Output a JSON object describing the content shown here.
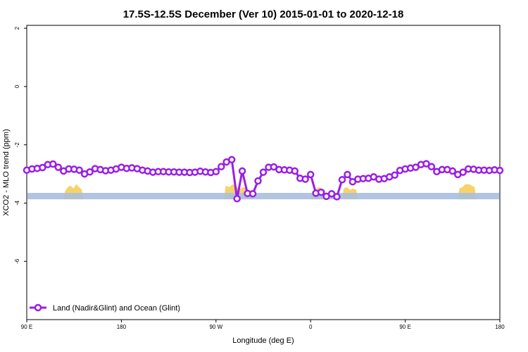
{
  "chart_data": {
    "type": "line",
    "title": "17.5S-12.5S December (Ver 10)   2015-01-01 to 2020-12-18",
    "xlabel": "Longitude (deg E)",
    "ylabel": "XCO2 - MLO trend (ppm)",
    "xlim": [
      90,
      450
    ],
    "ylim": [
      -8.0,
      2.1
    ],
    "x_ticks": [
      {
        "value": 90,
        "label": "90 E"
      },
      {
        "value": 162,
        "label": "180"
      },
      {
        "value": 234,
        "label": "90 W"
      },
      {
        "value": 306,
        "label": "0"
      },
      {
        "value": 378,
        "label": "90 E"
      },
      {
        "value": 450,
        "label": "180"
      }
    ],
    "y_ticks": [
      {
        "value": 2,
        "label": "2"
      },
      {
        "value": 0,
        "label": "0"
      },
      {
        "value": -2,
        "label": "-2"
      },
      {
        "value": -4,
        "label": "-4"
      },
      {
        "value": -6,
        "label": "-6"
      }
    ],
    "grid": false,
    "legend_position": "bottom-left",
    "series": [
      {
        "name": "Land (Nadir&Glint) and Ocean (Glint)",
        "color": "#9a1ee6",
        "marker": "open-circle",
        "x": [
          90,
          94,
          98,
          102,
          106,
          110,
          114,
          118,
          122,
          126,
          130,
          134,
          138,
          142,
          146,
          150,
          154,
          158,
          162,
          166,
          170,
          174,
          178,
          182,
          186,
          190,
          194,
          198,
          202,
          206,
          210,
          214,
          218,
          222,
          226,
          230,
          234,
          238,
          242,
          246,
          250,
          254,
          258,
          262,
          266,
          270,
          274,
          278,
          282,
          286,
          290,
          294,
          298,
          302,
          306,
          310,
          314,
          318,
          322,
          326,
          330,
          334,
          338,
          342,
          346,
          350,
          354,
          358,
          362,
          366,
          370,
          374,
          378,
          382,
          386,
          390,
          394,
          398,
          402,
          406,
          410,
          414,
          418,
          422,
          426,
          430,
          434,
          438,
          442,
          446,
          450
        ],
        "y": [
          -2.87,
          -2.83,
          -2.81,
          -2.78,
          -2.68,
          -2.66,
          -2.77,
          -2.9,
          -2.83,
          -2.84,
          -2.87,
          -3.0,
          -2.93,
          -2.82,
          -2.85,
          -2.89,
          -2.87,
          -2.83,
          -2.77,
          -2.81,
          -2.79,
          -2.82,
          -2.87,
          -2.9,
          -2.94,
          -2.92,
          -2.92,
          -2.93,
          -2.93,
          -2.94,
          -2.94,
          -2.95,
          -2.94,
          -2.91,
          -2.93,
          -2.95,
          -2.92,
          -2.75,
          -2.59,
          -2.51,
          -3.85,
          -2.9,
          -3.67,
          -3.68,
          -3.24,
          -2.94,
          -2.77,
          -2.76,
          -2.85,
          -2.86,
          -2.87,
          -2.9,
          -3.15,
          -3.18,
          -3.02,
          -3.66,
          -3.63,
          -3.77,
          -3.68,
          -3.78,
          -3.2,
          -3.02,
          -3.27,
          -3.18,
          -3.16,
          -3.15,
          -3.1,
          -3.18,
          -3.16,
          -3.1,
          -3.04,
          -2.88,
          -2.83,
          -2.8,
          -2.77,
          -2.68,
          -2.65,
          -2.75,
          -2.92,
          -2.85,
          -2.85,
          -2.9,
          -3.02,
          -2.94,
          -2.83,
          -2.84,
          -2.87,
          -2.87,
          -2.88,
          -2.86,
          -2.88
        ]
      }
    ],
    "reference_band": {
      "y_min": -3.65,
      "y_max": -3.87,
      "color": "#a8bfdf"
    },
    "land_overlay": {
      "color": "#f6d36a",
      "segments": [
        {
          "x_start": 118,
          "x_end": 133,
          "heights": [
            0.05,
            0.2,
            0.25,
            0.15,
            0.3,
            0.2,
            0.1
          ]
        },
        {
          "x_start": 240,
          "x_end": 262,
          "heights": [
            0.25,
            0.2,
            0.3,
            0.2,
            0.15,
            0.2,
            0.1,
            0.05
          ]
        },
        {
          "x_start": 306,
          "x_end": 318,
          "heights": [
            0.05,
            0.1,
            0.2,
            0.15,
            0.1
          ]
        },
        {
          "x_start": 330,
          "x_end": 342,
          "heights": [
            0.15,
            0.2,
            0.1,
            0.15,
            0.1
          ]
        },
        {
          "x_start": 418,
          "x_end": 432,
          "heights": [
            0.15,
            0.2,
            0.3,
            0.3,
            0.25,
            0.2
          ]
        }
      ]
    }
  }
}
